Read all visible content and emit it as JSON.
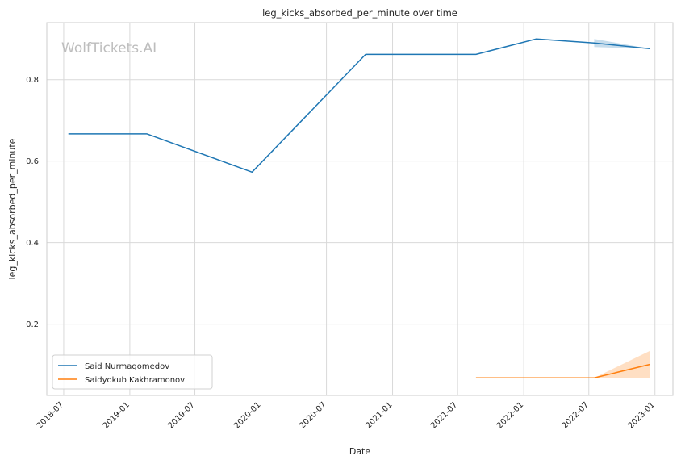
{
  "chart_data": {
    "type": "line",
    "title": "leg_kicks_absorbed_per_minute over time",
    "xlabel": "Date",
    "ylabel": "leg_kicks_absorbed_per_minute",
    "watermark": "WolfTickets.AI",
    "x_ticks": [
      "2018-07",
      "2019-01",
      "2019-07",
      "2020-01",
      "2020-07",
      "2021-01",
      "2021-07",
      "2022-01",
      "2022-07",
      "2023-01"
    ],
    "y_ticks": [
      "0.2",
      "0.4",
      "0.6",
      "0.8"
    ],
    "xlim": [
      "2018-05-15",
      "2023-02-20"
    ],
    "ylim": [
      0.025,
      0.94
    ],
    "grid": true,
    "legend_position": "lower-left",
    "colors": {
      "Said Nurmagomedov": "#1f77b4",
      "Saidyokub Kakhramonov": "#ff7f0e"
    },
    "series": [
      {
        "name": "Said Nurmagomedov",
        "points": [
          {
            "x": "2018-07-14",
            "y": 0.667
          },
          {
            "x": "2019-02-17",
            "y": 0.667
          },
          {
            "x": "2019-12-07",
            "y": 0.573
          },
          {
            "x": "2020-10-18",
            "y": 0.862
          },
          {
            "x": "2021-08-21",
            "y": 0.862
          },
          {
            "x": "2022-02-05",
            "y": 0.9
          },
          {
            "x": "2022-07-16",
            "y": 0.89
          },
          {
            "x": "2022-12-17",
            "y": 0.876
          }
        ],
        "band": [
          {
            "x": "2022-07-16",
            "low": 0.88,
            "high": 0.9
          },
          {
            "x": "2022-12-17",
            "low": 0.876,
            "high": 0.876
          }
        ]
      },
      {
        "name": "Saidyokub Kakhramonov",
        "points": [
          {
            "x": "2021-08-21",
            "y": 0.068
          },
          {
            "x": "2022-07-16",
            "y": 0.068
          },
          {
            "x": "2022-12-17",
            "y": 0.101
          }
        ],
        "band": [
          {
            "x": "2022-07-16",
            "low": 0.068,
            "high": 0.068
          },
          {
            "x": "2022-12-17",
            "low": 0.068,
            "high": 0.134
          }
        ]
      }
    ]
  }
}
